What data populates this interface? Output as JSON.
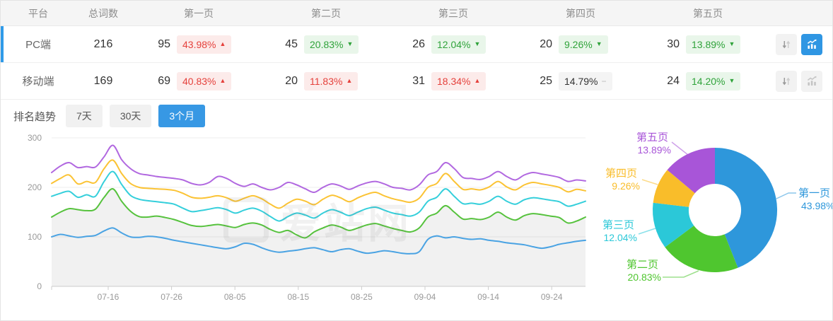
{
  "table": {
    "headers": [
      "平台",
      "总词数",
      "第一页",
      "第二页",
      "第三页",
      "第四页",
      "第五页"
    ],
    "rows": [
      {
        "platform": "PC端",
        "total": "216",
        "selected": true,
        "pages": [
          {
            "count": "95",
            "pct": "43.98%",
            "dir": "up",
            "tone": "red"
          },
          {
            "count": "45",
            "pct": "20.83%",
            "dir": "down",
            "tone": "green"
          },
          {
            "count": "26",
            "pct": "12.04%",
            "dir": "down",
            "tone": "green"
          },
          {
            "count": "20",
            "pct": "9.26%",
            "dir": "down",
            "tone": "green"
          },
          {
            "count": "30",
            "pct": "13.89%",
            "dir": "down",
            "tone": "green"
          }
        ]
      },
      {
        "platform": "移动端",
        "total": "169",
        "selected": false,
        "pages": [
          {
            "count": "69",
            "pct": "40.83%",
            "dir": "up",
            "tone": "red"
          },
          {
            "count": "20",
            "pct": "11.83%",
            "dir": "up",
            "tone": "red"
          },
          {
            "count": "31",
            "pct": "18.34%",
            "dir": "up",
            "tone": "red"
          },
          {
            "count": "25",
            "pct": "14.79%",
            "dir": "flat",
            "tone": "gray"
          },
          {
            "count": "24",
            "pct": "14.20%",
            "dir": "down",
            "tone": "green"
          }
        ]
      }
    ]
  },
  "trend": {
    "title": "排名趋势",
    "ranges": [
      {
        "label": "7天",
        "active": false
      },
      {
        "label": "30天",
        "active": false
      },
      {
        "label": "3个月",
        "active": true
      }
    ]
  },
  "accent": "#3798e4",
  "chart_data": [
    {
      "type": "line",
      "title": "排名趋势",
      "x_ticks": [
        "07-16",
        "07-26",
        "08-05",
        "08-15",
        "08-25",
        "09-04",
        "09-14",
        "09-24"
      ],
      "y_ticks": [
        0,
        100,
        200,
        300
      ],
      "ylim": [
        0,
        300
      ],
      "grid": true,
      "legend": "none",
      "watermark": "爱站网",
      "series": [
        {
          "name": "第一页",
          "color": "#4aa3e3",
          "values": [
            100,
            105,
            102,
            99,
            101,
            103,
            112,
            118,
            108,
            100,
            99,
            101,
            100,
            97,
            93,
            90,
            87,
            84,
            81,
            78,
            76,
            80,
            87,
            85,
            78,
            72,
            69,
            71,
            73,
            76,
            78,
            74,
            70,
            74,
            76,
            71,
            67,
            69,
            72,
            70,
            67,
            66,
            70,
            95,
            102,
            98,
            100,
            97,
            95,
            96,
            93,
            91,
            88,
            86,
            84,
            80,
            77,
            80,
            85,
            88,
            91,
            93
          ]
        },
        {
          "name": "第二页",
          "color": "#56c23d",
          "area": true,
          "values": [
            140,
            150,
            157,
            155,
            153,
            156,
            180,
            197,
            172,
            152,
            141,
            140,
            142,
            139,
            135,
            129,
            123,
            121,
            123,
            125,
            122,
            119,
            125,
            128,
            124,
            115,
            109,
            113,
            104,
            98,
            110,
            118,
            124,
            120,
            113,
            118,
            124,
            127,
            122,
            117,
            113,
            110,
            118,
            140,
            148,
            163,
            150,
            136,
            137,
            135,
            140,
            150,
            140,
            134,
            143,
            147,
            145,
            142,
            139,
            128,
            132,
            140
          ]
        },
        {
          "name": "第三页",
          "color": "#35cfdb",
          "values": [
            182,
            188,
            192,
            180,
            185,
            182,
            212,
            232,
            206,
            184,
            176,
            173,
            171,
            169,
            166,
            158,
            151,
            153,
            156,
            159,
            155,
            148,
            154,
            158,
            152,
            141,
            132,
            141,
            148,
            144,
            138,
            148,
            155,
            150,
            143,
            150,
            157,
            160,
            154,
            148,
            145,
            142,
            150,
            172,
            180,
            197,
            182,
            167,
            168,
            166,
            172,
            182,
            172,
            166,
            175,
            179,
            177,
            174,
            171,
            162,
            166,
            172
          ]
        },
        {
          "name": "第四页",
          "color": "#fbc334",
          "values": [
            208,
            218,
            225,
            207,
            212,
            210,
            238,
            255,
            228,
            208,
            200,
            198,
            197,
            196,
            194,
            188,
            180,
            178,
            180,
            183,
            179,
            172,
            178,
            183,
            177,
            166,
            158,
            168,
            176,
            172,
            165,
            176,
            184,
            179,
            171,
            179,
            186,
            190,
            183,
            177,
            173,
            170,
            178,
            200,
            208,
            228,
            212,
            196,
            197,
            195,
            201,
            212,
            201,
            195,
            205,
            210,
            207,
            204,
            200,
            191,
            196,
            193
          ]
        },
        {
          "name": "第五页",
          "color": "#b168e0",
          "values": [
            230,
            243,
            250,
            240,
            242,
            241,
            262,
            285,
            256,
            238,
            228,
            225,
            222,
            220,
            218,
            215,
            208,
            205,
            210,
            222,
            218,
            208,
            202,
            207,
            200,
            195,
            200,
            210,
            205,
            197,
            190,
            200,
            207,
            203,
            196,
            203,
            209,
            212,
            207,
            200,
            198,
            195,
            205,
            225,
            232,
            250,
            238,
            220,
            218,
            216,
            222,
            232,
            222,
            215,
            225,
            230,
            227,
            224,
            220,
            212,
            215,
            213
          ]
        }
      ]
    },
    {
      "type": "pie",
      "donut": true,
      "slices": [
        {
          "label": "第一页",
          "value": 43.98,
          "color": "#2e97db"
        },
        {
          "label": "第二页",
          "value": 20.83,
          "color": "#4fc62f"
        },
        {
          "label": "第三页",
          "value": 12.04,
          "color": "#2bc8d8"
        },
        {
          "label": "第四页",
          "value": 9.26,
          "color": "#f9bd2a"
        },
        {
          "label": "第五页",
          "value": 13.89,
          "color": "#a855d8"
        }
      ]
    }
  ]
}
